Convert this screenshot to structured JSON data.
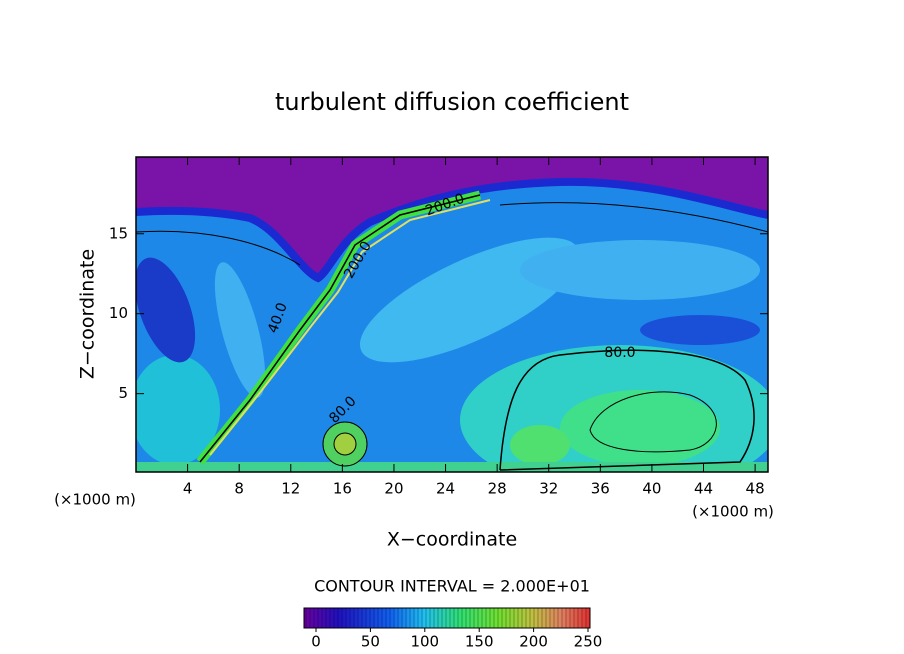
{
  "chart_data": {
    "type": "contour",
    "title": "turbulent diffusion coefficient",
    "xlabel": "X−coordinate",
    "ylabel": "Z−coordinate",
    "x_unit_labels": [
      "(×1000 m)",
      "(×1000 m)"
    ],
    "xlim": [
      0,
      49
    ],
    "xticks": [
      4,
      8,
      12,
      16,
      20,
      24,
      28,
      32,
      36,
      40,
      44,
      48
    ],
    "ylim": [
      0.1,
      19.8
    ],
    "yticks": [
      5,
      10,
      15
    ],
    "contour_interval_label": "CONTOUR INTERVAL = 2.000E+01",
    "contour_labels": [
      "40.0",
      "80.0",
      "80.0",
      "200.0",
      "200.0"
    ],
    "colorbar_lim": [
      0,
      250
    ],
    "colorbar_ticks": [
      0,
      50,
      100,
      150,
      200,
      250
    ]
  }
}
